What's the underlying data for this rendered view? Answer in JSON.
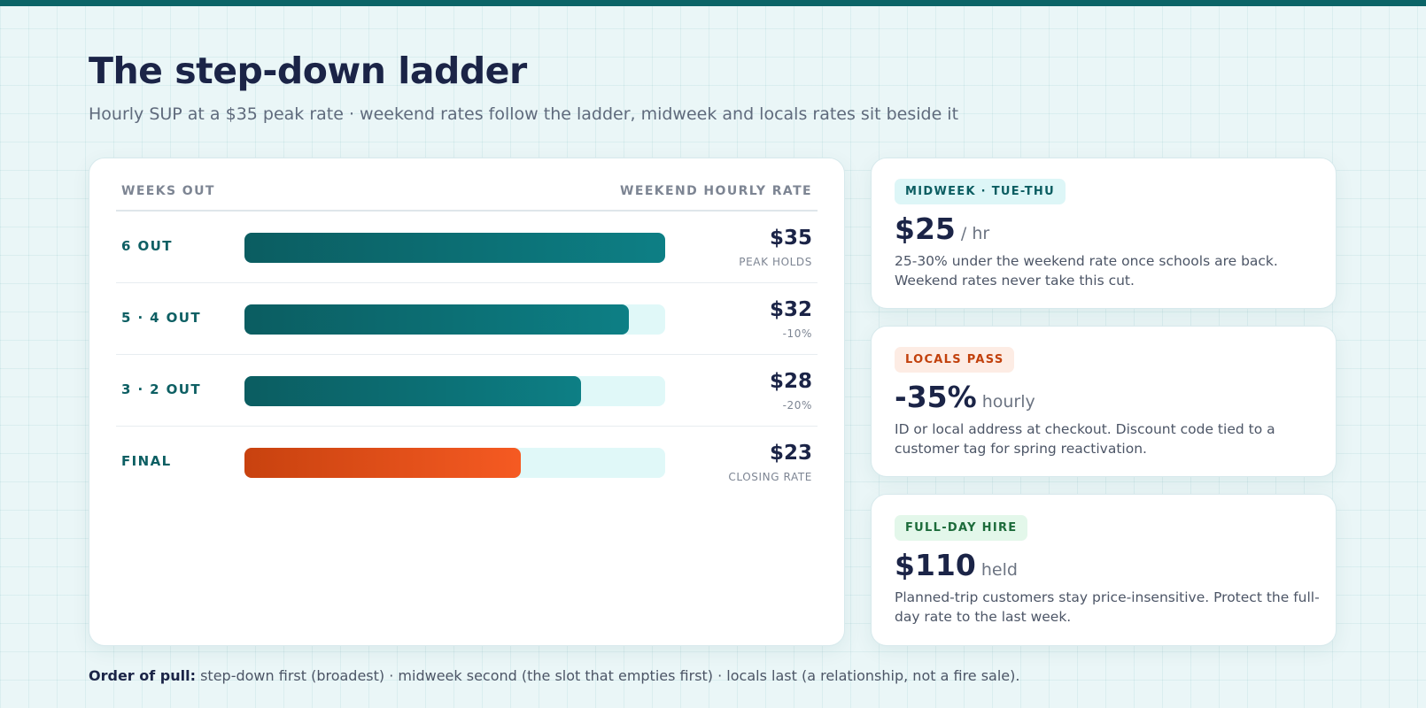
{
  "header": {
    "title": "The step-down ladder",
    "subtitle": "Hourly SUP at a $35 peak rate · weekend rates follow the ladder, midweek and locals rates sit beside it"
  },
  "chart_data": {
    "type": "bar",
    "orientation": "horizontal",
    "column_headers": {
      "left": "WEEKS OUT",
      "right": "WEEKEND HOURLY RATE"
    },
    "max_value": 35,
    "rows": [
      {
        "label": "6 OUT",
        "value": 35,
        "value_label": "$35",
        "note": "PEAK HOLDS",
        "highlight": false
      },
      {
        "label": "5 · 4 OUT",
        "value": 32,
        "value_label": "$32",
        "note": "-10%",
        "highlight": false
      },
      {
        "label": "3 · 2 OUT",
        "value": 28,
        "value_label": "$28",
        "note": "-20%",
        "highlight": false
      },
      {
        "label": "FINAL",
        "value": 23,
        "value_label": "$23",
        "note": "CLOSING RATE",
        "highlight": true
      }
    ],
    "colors": {
      "bar": "#0d6f74",
      "final": "#e8501a",
      "track": "#e0f8f8"
    }
  },
  "side_cards": [
    {
      "badge": "MIDWEEK · TUE-THU",
      "value": "$25",
      "unit": "/ hr",
      "description": "25-30% under the weekend rate once schools are back. Weekend rates never take this cut."
    },
    {
      "badge": "LOCALS PASS",
      "value": "-35%",
      "unit": "hourly",
      "description": "ID or local address at checkout. Discount code tied to a customer tag for spring reactivation."
    },
    {
      "badge": "FULL-DAY HIRE",
      "value": "$110",
      "unit": "held",
      "description": "Planned-trip customers stay price-insensitive. Protect the full-day rate to the last week."
    }
  ],
  "footer": {
    "lead": "Order of pull:",
    "text": "step-down first (broadest) · midweek second (the slot that empties first) · locals last (a relationship, not a fire sale)."
  }
}
